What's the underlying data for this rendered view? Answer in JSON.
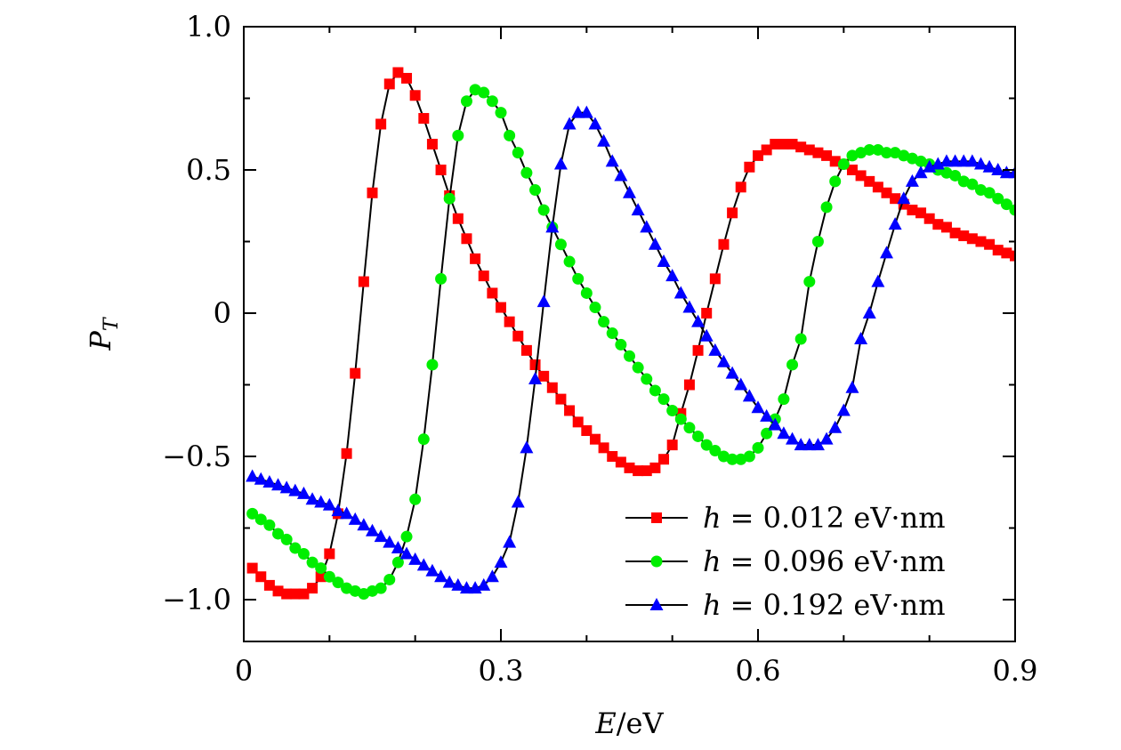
{
  "chart_data": {
    "type": "line",
    "xlabel": {
      "var": "E",
      "unit": "/eV"
    },
    "ylabel": {
      "var": "P",
      "sub": "T"
    },
    "xlim": [
      0,
      0.9
    ],
    "ylim": [
      -1.15,
      1.0
    ],
    "x_ticks": [
      {
        "value": 0,
        "label": "0"
      },
      {
        "value": 0.3,
        "label": "0.3"
      },
      {
        "value": 0.6,
        "label": "0.6"
      },
      {
        "value": 0.9,
        "label": "0.9"
      }
    ],
    "y_ticks": [
      {
        "value": 1.0,
        "label": "1.0"
      },
      {
        "value": 0.5,
        "label": "0.5"
      },
      {
        "value": 0,
        "label": "0"
      },
      {
        "value": -0.5,
        "label": "−0.5"
      },
      {
        "value": -1.0,
        "label": "−1.0"
      }
    ],
    "x_minor_step": 0.1,
    "y_minor_step": 0.25,
    "grid": false,
    "legend_position": "bottom-right",
    "series": [
      {
        "name": "h = 0.012 eV·nm",
        "var": "h",
        "value_text": "= 0.012 eV·nm",
        "color": "#ff0000",
        "marker": "square",
        "x": [
          0.01,
          0.02,
          0.03,
          0.04,
          0.05,
          0.06,
          0.07,
          0.08,
          0.09,
          0.1,
          0.11,
          0.12,
          0.13,
          0.14,
          0.15,
          0.16,
          0.17,
          0.18,
          0.19,
          0.2,
          0.21,
          0.22,
          0.23,
          0.24,
          0.25,
          0.26,
          0.27,
          0.28,
          0.29,
          0.3,
          0.31,
          0.32,
          0.33,
          0.34,
          0.35,
          0.36,
          0.37,
          0.38,
          0.39,
          0.4,
          0.41,
          0.42,
          0.43,
          0.44,
          0.45,
          0.46,
          0.47,
          0.48,
          0.49,
          0.5,
          0.51,
          0.52,
          0.53,
          0.54,
          0.55,
          0.56,
          0.57,
          0.58,
          0.59,
          0.6,
          0.61,
          0.62,
          0.63,
          0.64,
          0.65,
          0.66,
          0.67,
          0.68,
          0.69,
          0.7,
          0.71,
          0.72,
          0.73,
          0.74,
          0.75,
          0.76,
          0.77,
          0.78,
          0.79,
          0.8,
          0.81,
          0.82,
          0.83,
          0.84,
          0.85,
          0.86,
          0.87,
          0.88,
          0.89,
          0.9
        ],
        "y": [
          -0.89,
          -0.92,
          -0.95,
          -0.97,
          -0.98,
          -0.98,
          -0.98,
          -0.96,
          -0.92,
          -0.84,
          -0.7,
          -0.49,
          -0.21,
          0.11,
          0.42,
          0.66,
          0.8,
          0.84,
          0.82,
          0.76,
          0.68,
          0.59,
          0.5,
          0.41,
          0.33,
          0.26,
          0.19,
          0.13,
          0.07,
          0.02,
          -0.03,
          -0.08,
          -0.13,
          -0.18,
          -0.22,
          -0.26,
          -0.3,
          -0.34,
          -0.38,
          -0.41,
          -0.44,
          -0.47,
          -0.5,
          -0.52,
          -0.54,
          -0.55,
          -0.55,
          -0.54,
          -0.51,
          -0.46,
          -0.35,
          -0.25,
          -0.13,
          0.0,
          0.12,
          0.24,
          0.35,
          0.44,
          0.51,
          0.55,
          0.57,
          0.59,
          0.59,
          0.59,
          0.58,
          0.57,
          0.56,
          0.55,
          0.53,
          0.52,
          0.5,
          0.48,
          0.46,
          0.44,
          0.42,
          0.4,
          0.38,
          0.36,
          0.35,
          0.33,
          0.31,
          0.3,
          0.28,
          0.27,
          0.26,
          0.25,
          0.24,
          0.22,
          0.21,
          0.2
        ]
      },
      {
        "name": "h = 0.096 eV·nm",
        "var": "h",
        "value_text": "= 0.096 eV·nm",
        "color": "#00ee00",
        "marker": "circle",
        "x": [
          0.01,
          0.02,
          0.03,
          0.04,
          0.05,
          0.06,
          0.07,
          0.08,
          0.09,
          0.1,
          0.11,
          0.12,
          0.13,
          0.14,
          0.15,
          0.16,
          0.17,
          0.18,
          0.19,
          0.2,
          0.21,
          0.22,
          0.23,
          0.24,
          0.25,
          0.26,
          0.27,
          0.28,
          0.29,
          0.3,
          0.31,
          0.32,
          0.33,
          0.34,
          0.35,
          0.36,
          0.37,
          0.38,
          0.39,
          0.4,
          0.41,
          0.42,
          0.43,
          0.44,
          0.45,
          0.46,
          0.47,
          0.48,
          0.49,
          0.5,
          0.51,
          0.52,
          0.53,
          0.54,
          0.55,
          0.56,
          0.57,
          0.58,
          0.59,
          0.6,
          0.61,
          0.62,
          0.63,
          0.64,
          0.65,
          0.66,
          0.67,
          0.68,
          0.69,
          0.7,
          0.71,
          0.72,
          0.73,
          0.74,
          0.75,
          0.76,
          0.77,
          0.78,
          0.79,
          0.8,
          0.81,
          0.82,
          0.83,
          0.84,
          0.85,
          0.86,
          0.87,
          0.88,
          0.89,
          0.9
        ],
        "y": [
          -0.7,
          -0.72,
          -0.74,
          -0.77,
          -0.79,
          -0.82,
          -0.84,
          -0.87,
          -0.89,
          -0.92,
          -0.94,
          -0.96,
          -0.97,
          -0.98,
          -0.97,
          -0.96,
          -0.93,
          -0.87,
          -0.78,
          -0.65,
          -0.44,
          -0.18,
          0.12,
          0.4,
          0.62,
          0.74,
          0.78,
          0.77,
          0.74,
          0.7,
          0.62,
          0.56,
          0.49,
          0.43,
          0.36,
          0.3,
          0.24,
          0.18,
          0.12,
          0.07,
          0.02,
          -0.03,
          -0.07,
          -0.11,
          -0.15,
          -0.19,
          -0.23,
          -0.27,
          -0.3,
          -0.34,
          -0.37,
          -0.4,
          -0.43,
          -0.46,
          -0.48,
          -0.5,
          -0.51,
          -0.51,
          -0.5,
          -0.47,
          -0.42,
          -0.37,
          -0.3,
          -0.18,
          -0.09,
          0.11,
          0.25,
          0.37,
          0.46,
          0.52,
          0.55,
          0.56,
          0.57,
          0.57,
          0.56,
          0.56,
          0.55,
          0.54,
          0.53,
          0.52,
          0.5,
          0.49,
          0.48,
          0.46,
          0.45,
          0.43,
          0.42,
          0.4,
          0.38,
          0.36
        ]
      },
      {
        "name": "h = 0.192 eV·nm",
        "var": "h",
        "value_text": "= 0.192 eV·nm",
        "color": "#0000ff",
        "marker": "triangle",
        "x": [
          0.01,
          0.02,
          0.03,
          0.04,
          0.05,
          0.06,
          0.07,
          0.08,
          0.09,
          0.1,
          0.11,
          0.12,
          0.13,
          0.14,
          0.15,
          0.16,
          0.17,
          0.18,
          0.19,
          0.2,
          0.21,
          0.22,
          0.23,
          0.24,
          0.25,
          0.26,
          0.27,
          0.28,
          0.29,
          0.3,
          0.31,
          0.32,
          0.33,
          0.34,
          0.35,
          0.36,
          0.37,
          0.38,
          0.39,
          0.4,
          0.41,
          0.42,
          0.43,
          0.44,
          0.45,
          0.46,
          0.47,
          0.48,
          0.49,
          0.5,
          0.51,
          0.52,
          0.53,
          0.54,
          0.55,
          0.56,
          0.57,
          0.58,
          0.59,
          0.6,
          0.61,
          0.62,
          0.63,
          0.64,
          0.65,
          0.66,
          0.67,
          0.68,
          0.69,
          0.7,
          0.71,
          0.72,
          0.73,
          0.74,
          0.75,
          0.76,
          0.77,
          0.78,
          0.79,
          0.8,
          0.81,
          0.82,
          0.83,
          0.84,
          0.85,
          0.86,
          0.87,
          0.88,
          0.89,
          0.9
        ],
        "y": [
          -0.57,
          -0.58,
          -0.59,
          -0.6,
          -0.61,
          -0.62,
          -0.63,
          -0.65,
          -0.66,
          -0.67,
          -0.69,
          -0.7,
          -0.72,
          -0.74,
          -0.76,
          -0.78,
          -0.8,
          -0.82,
          -0.84,
          -0.86,
          -0.88,
          -0.9,
          -0.92,
          -0.94,
          -0.95,
          -0.96,
          -0.96,
          -0.95,
          -0.92,
          -0.87,
          -0.8,
          -0.66,
          -0.47,
          -0.23,
          0.04,
          0.3,
          0.52,
          0.66,
          0.7,
          0.7,
          0.66,
          0.6,
          0.53,
          0.48,
          0.42,
          0.36,
          0.3,
          0.24,
          0.18,
          0.13,
          0.07,
          0.02,
          -0.03,
          -0.08,
          -0.13,
          -0.17,
          -0.21,
          -0.25,
          -0.29,
          -0.33,
          -0.36,
          -0.39,
          -0.42,
          -0.44,
          -0.46,
          -0.46,
          -0.46,
          -0.44,
          -0.4,
          -0.34,
          -0.26,
          -0.09,
          0.0,
          0.11,
          0.21,
          0.31,
          0.4,
          0.46,
          0.49,
          0.51,
          0.52,
          0.53,
          0.53,
          0.53,
          0.53,
          0.52,
          0.51,
          0.5,
          0.49,
          0.49
        ]
      }
    ]
  }
}
